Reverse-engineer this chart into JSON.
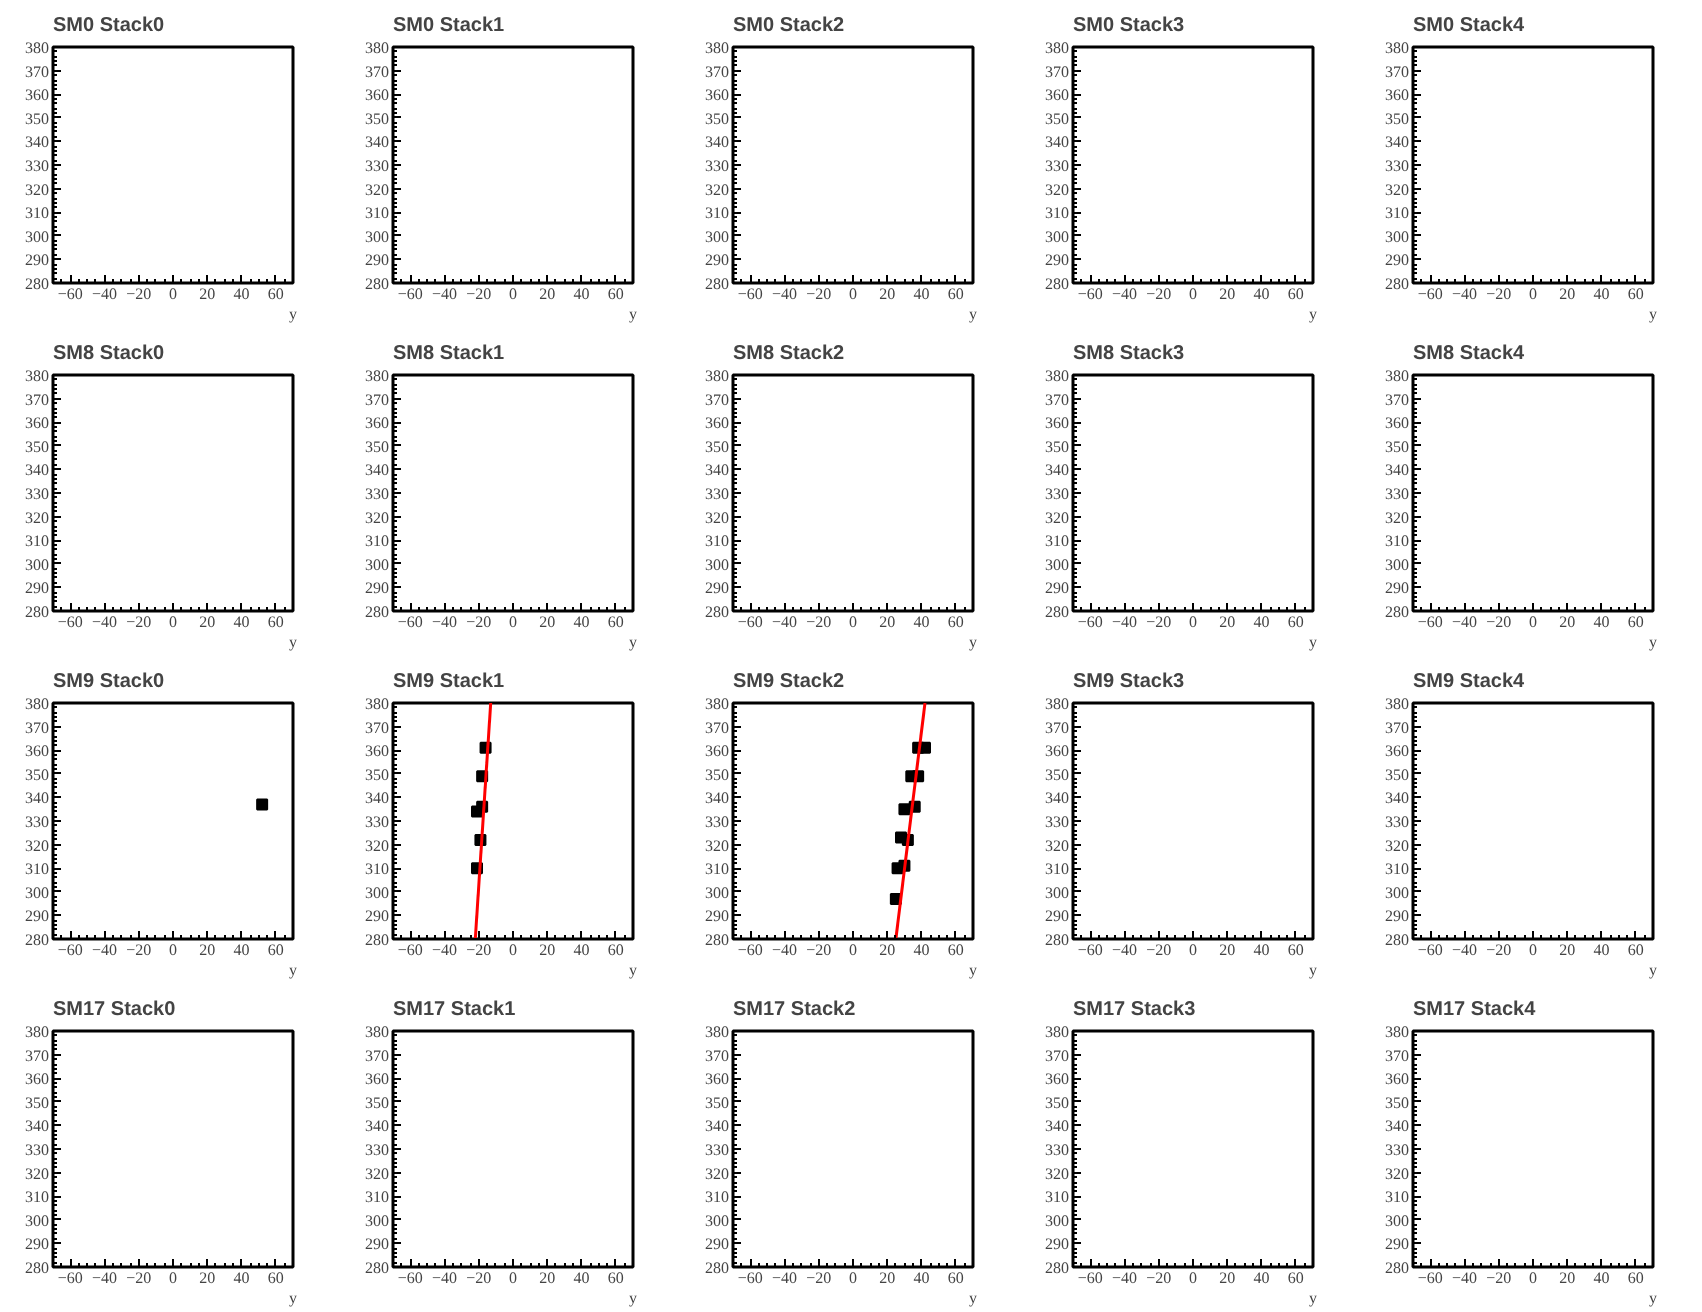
{
  "chart_data": [
    {
      "type": "scatter",
      "title": "SM0 Stack0",
      "xlabel": "y",
      "xlim": [
        -70,
        70
      ],
      "ylim": [
        280,
        380
      ],
      "xticks": [
        -60,
        -40,
        -20,
        0,
        20,
        40,
        60
      ],
      "yticks": [
        280,
        290,
        300,
        310,
        320,
        330,
        340,
        350,
        360,
        370,
        380
      ],
      "grid": false
    },
    {
      "type": "scatter",
      "title": "SM0 Stack1",
      "xlabel": "y",
      "xlim": [
        -70,
        70
      ],
      "ylim": [
        280,
        380
      ],
      "xticks": [
        -60,
        -40,
        -20,
        0,
        20,
        40,
        60
      ],
      "yticks": [
        280,
        290,
        300,
        310,
        320,
        330,
        340,
        350,
        360,
        370,
        380
      ],
      "grid": false
    },
    {
      "type": "scatter",
      "title": "SM0 Stack2",
      "xlabel": "y",
      "xlim": [
        -70,
        70
      ],
      "ylim": [
        280,
        380
      ],
      "xticks": [
        -60,
        -40,
        -20,
        0,
        20,
        40,
        60
      ],
      "yticks": [
        280,
        290,
        300,
        310,
        320,
        330,
        340,
        350,
        360,
        370,
        380
      ],
      "grid": false
    },
    {
      "type": "scatter",
      "title": "SM0 Stack3",
      "xlabel": "y",
      "xlim": [
        -70,
        70
      ],
      "ylim": [
        280,
        380
      ],
      "xticks": [
        -60,
        -40,
        -20,
        0,
        20,
        40,
        60
      ],
      "yticks": [
        280,
        290,
        300,
        310,
        320,
        330,
        340,
        350,
        360,
        370,
        380
      ],
      "grid": false
    },
    {
      "type": "scatter",
      "title": "SM0 Stack4",
      "xlabel": "y",
      "xlim": [
        -70,
        70
      ],
      "ylim": [
        280,
        380
      ],
      "xticks": [
        -60,
        -40,
        -20,
        0,
        20,
        40,
        60
      ],
      "yticks": [
        280,
        290,
        300,
        310,
        320,
        330,
        340,
        350,
        360,
        370,
        380
      ],
      "grid": false
    },
    {
      "type": "scatter",
      "title": "SM8 Stack0",
      "xlabel": "y",
      "xlim": [
        -70,
        70
      ],
      "ylim": [
        280,
        380
      ],
      "xticks": [
        -60,
        -40,
        -20,
        0,
        20,
        40,
        60
      ],
      "yticks": [
        280,
        290,
        300,
        310,
        320,
        330,
        340,
        350,
        360,
        370,
        380
      ],
      "grid": false
    },
    {
      "type": "scatter",
      "title": "SM8 Stack1",
      "xlabel": "y",
      "xlim": [
        -70,
        70
      ],
      "ylim": [
        280,
        380
      ],
      "xticks": [
        -60,
        -40,
        -20,
        0,
        20,
        40,
        60
      ],
      "yticks": [
        280,
        290,
        300,
        310,
        320,
        330,
        340,
        350,
        360,
        370,
        380
      ],
      "grid": false
    },
    {
      "type": "scatter",
      "title": "SM8 Stack2",
      "xlabel": "y",
      "xlim": [
        -70,
        70
      ],
      "ylim": [
        280,
        380
      ],
      "xticks": [
        -60,
        -40,
        -20,
        0,
        20,
        40,
        60
      ],
      "yticks": [
        280,
        290,
        300,
        310,
        320,
        330,
        340,
        350,
        360,
        370,
        380
      ],
      "grid": false
    },
    {
      "type": "scatter",
      "title": "SM8 Stack3",
      "xlabel": "y",
      "xlim": [
        -70,
        70
      ],
      "ylim": [
        280,
        380
      ],
      "xticks": [
        -60,
        -40,
        -20,
        0,
        20,
        40,
        60
      ],
      "yticks": [
        280,
        290,
        300,
        310,
        320,
        330,
        340,
        350,
        360,
        370,
        380
      ],
      "grid": false
    },
    {
      "type": "scatter",
      "title": "SM8 Stack4",
      "xlabel": "y",
      "xlim": [
        -70,
        70
      ],
      "ylim": [
        280,
        380
      ],
      "xticks": [
        -60,
        -40,
        -20,
        0,
        20,
        40,
        60
      ],
      "yticks": [
        280,
        290,
        300,
        310,
        320,
        330,
        340,
        350,
        360,
        370,
        380
      ],
      "grid": false
    },
    {
      "type": "scatter",
      "title": "SM9 Stack0",
      "xlabel": "y",
      "xlim": [
        -70,
        70
      ],
      "ylim": [
        280,
        380
      ],
      "xticks": [
        -60,
        -40,
        -20,
        0,
        20,
        40,
        60
      ],
      "yticks": [
        280,
        290,
        300,
        310,
        320,
        330,
        340,
        350,
        360,
        370,
        380
      ],
      "grid": false,
      "series": [
        {
          "color": "#000000",
          "marker": "square",
          "x": [
            52
          ],
          "values": [
            337
          ]
        }
      ]
    },
    {
      "type": "scatter",
      "title": "SM9 Stack1",
      "xlabel": "y",
      "xlim": [
        -70,
        70
      ],
      "ylim": [
        280,
        380
      ],
      "xticks": [
        -60,
        -40,
        -20,
        0,
        20,
        40,
        60
      ],
      "yticks": [
        280,
        290,
        300,
        310,
        320,
        330,
        340,
        350,
        360,
        370,
        380
      ],
      "grid": false,
      "series": [
        {
          "color": "#000000",
          "marker": "square",
          "x": [
            -21,
            -19,
            -21,
            -18,
            -18,
            -16
          ],
          "values": [
            310,
            322,
            334,
            336,
            349,
            361
          ]
        },
        {
          "type": "line",
          "color": "#ff0000",
          "x": [
            -22,
            -13
          ],
          "values": [
            280,
            380
          ]
        }
      ]
    },
    {
      "type": "scatter",
      "title": "SM9 Stack2",
      "xlabel": "y",
      "xlim": [
        -70,
        70
      ],
      "ylim": [
        280,
        380
      ],
      "xticks": [
        -60,
        -40,
        -20,
        0,
        20,
        40,
        60
      ],
      "yticks": [
        280,
        290,
        300,
        310,
        320,
        330,
        340,
        350,
        360,
        370,
        380
      ],
      "grid": false,
      "series": [
        {
          "color": "#000000",
          "marker": "square",
          "x": [
            25,
            26,
            30,
            28,
            32,
            30,
            36,
            34,
            38,
            38,
            42
          ],
          "values": [
            297,
            310,
            311,
            323,
            322,
            335,
            336,
            349,
            349,
            361,
            361
          ]
        },
        {
          "type": "line",
          "color": "#ff0000",
          "x": [
            25,
            42
          ],
          "values": [
            280,
            380
          ]
        }
      ]
    },
    {
      "type": "scatter",
      "title": "SM9 Stack3",
      "xlabel": "y",
      "xlim": [
        -70,
        70
      ],
      "ylim": [
        280,
        380
      ],
      "xticks": [
        -60,
        -40,
        -20,
        0,
        20,
        40,
        60
      ],
      "yticks": [
        280,
        290,
        300,
        310,
        320,
        330,
        340,
        350,
        360,
        370,
        380
      ],
      "grid": false
    },
    {
      "type": "scatter",
      "title": "SM9 Stack4",
      "xlabel": "y",
      "xlim": [
        -70,
        70
      ],
      "ylim": [
        280,
        380
      ],
      "xticks": [
        -60,
        -40,
        -20,
        0,
        20,
        40,
        60
      ],
      "yticks": [
        280,
        290,
        300,
        310,
        320,
        330,
        340,
        350,
        360,
        370,
        380
      ],
      "grid": false
    },
    {
      "type": "scatter",
      "title": "SM17 Stack0",
      "xlabel": "y",
      "xlim": [
        -70,
        70
      ],
      "ylim": [
        280,
        380
      ],
      "xticks": [
        -60,
        -40,
        -20,
        0,
        20,
        40,
        60
      ],
      "yticks": [
        280,
        290,
        300,
        310,
        320,
        330,
        340,
        350,
        360,
        370,
        380
      ],
      "grid": false
    },
    {
      "type": "scatter",
      "title": "SM17 Stack1",
      "xlabel": "y",
      "xlim": [
        -70,
        70
      ],
      "ylim": [
        280,
        380
      ],
      "xticks": [
        -60,
        -40,
        -20,
        0,
        20,
        40,
        60
      ],
      "yticks": [
        280,
        290,
        300,
        310,
        320,
        330,
        340,
        350,
        360,
        370,
        380
      ],
      "grid": false
    },
    {
      "type": "scatter",
      "title": "SM17 Stack2",
      "xlabel": "y",
      "xlim": [
        -70,
        70
      ],
      "ylim": [
        280,
        380
      ],
      "xticks": [
        -60,
        -40,
        -20,
        0,
        20,
        40,
        60
      ],
      "yticks": [
        280,
        290,
        300,
        310,
        320,
        330,
        340,
        350,
        360,
        370,
        380
      ],
      "grid": false
    },
    {
      "type": "scatter",
      "title": "SM17 Stack3",
      "xlabel": "y",
      "xlim": [
        -70,
        70
      ],
      "ylim": [
        280,
        380
      ],
      "xticks": [
        -60,
        -40,
        -20,
        0,
        20,
        40,
        60
      ],
      "yticks": [
        280,
        290,
        300,
        310,
        320,
        330,
        340,
        350,
        360,
        370,
        380
      ],
      "grid": false
    },
    {
      "type": "scatter",
      "title": "SM17 Stack4",
      "xlabel": "y",
      "xlim": [
        -70,
        70
      ],
      "ylim": [
        280,
        380
      ],
      "xticks": [
        -60,
        -40,
        -20,
        0,
        20,
        40,
        60
      ],
      "yticks": [
        280,
        290,
        300,
        310,
        320,
        330,
        340,
        350,
        360,
        370,
        380
      ],
      "grid": false
    }
  ]
}
